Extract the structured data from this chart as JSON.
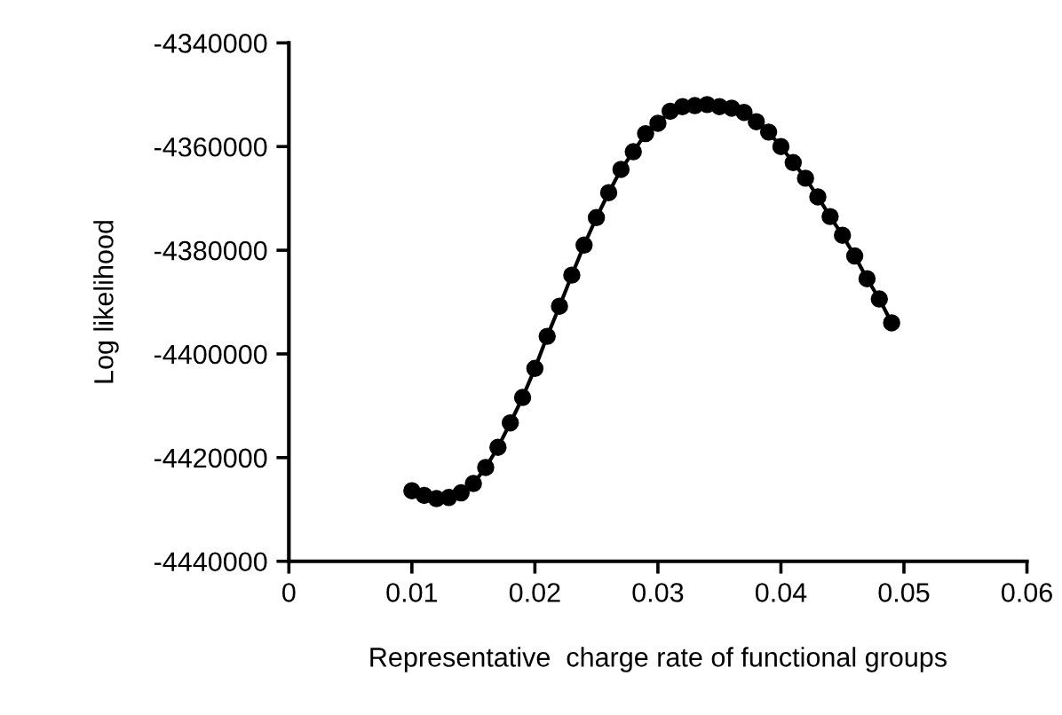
{
  "chart_data": {
    "type": "line",
    "xlabel": "Representative  charge rate of functional groups",
    "ylabel": "Log likelihood",
    "x": [
      0.01,
      0.011,
      0.012,
      0.013,
      0.014,
      0.015,
      0.016,
      0.017,
      0.018,
      0.019,
      0.02,
      0.021,
      0.022,
      0.023,
      0.024,
      0.025,
      0.026,
      0.027,
      0.028,
      0.029,
      0.03,
      0.031,
      0.032,
      0.033,
      0.034,
      0.035,
      0.036,
      0.037,
      0.038,
      0.039,
      0.04,
      0.041,
      0.042,
      0.043,
      0.044,
      0.045,
      0.046,
      0.047,
      0.048,
      0.049
    ],
    "series": [
      {
        "color": "#000000",
        "values": [
          -4426400,
          -4427300,
          -4427900,
          -4427700,
          -4426800,
          -4425000,
          -4421900,
          -4418000,
          -4413300,
          -4408400,
          -4402800,
          -4396600,
          -4390800,
          -4384800,
          -4379000,
          -4373700,
          -4368900,
          -4364400,
          -4361000,
          -4357500,
          -4355500,
          -4353200,
          -4352300,
          -4352100,
          -4351900,
          -4352300,
          -4352600,
          -4353400,
          -4355200,
          -4357200,
          -4360000,
          -4363100,
          -4366100,
          -4369700,
          -4373500,
          -4377100,
          -4381100,
          -4385500,
          -4389400,
          -4394000
        ]
      }
    ],
    "xlim": [
      0,
      0.06
    ],
    "xticks": [
      0,
      0.01,
      0.02,
      0.03,
      0.04,
      0.05,
      0.06
    ],
    "ylim": [
      -4440000,
      -4340000
    ],
    "yticks": [
      -4440000,
      -4420000,
      -4400000,
      -4380000,
      -4360000,
      -4340000
    ],
    "marker": "circle",
    "line_style": "solid",
    "grid": false,
    "legend": false
  }
}
